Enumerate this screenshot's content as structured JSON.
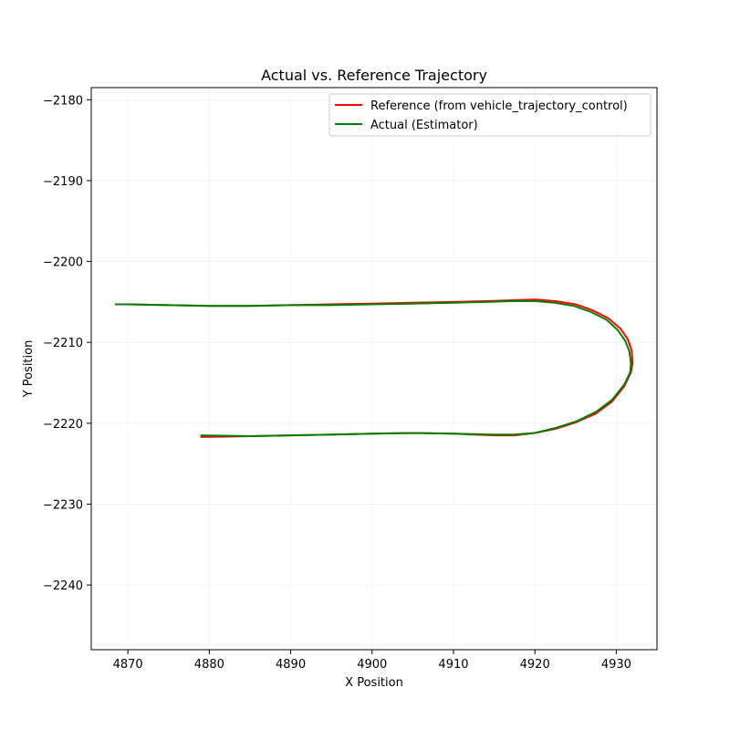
{
  "chart_data": {
    "type": "line",
    "title": "Actual vs. Reference Trajectory",
    "xlabel": "X Position",
    "ylabel": "Y Position",
    "xlim": [
      4865.5,
      4935.0
    ],
    "ylim": [
      -2248.0,
      -2178.5
    ],
    "xticks": [
      4870,
      4880,
      4890,
      4900,
      4910,
      4920,
      4930
    ],
    "yticks": [
      -2180,
      -2190,
      -2200,
      -2210,
      -2220,
      -2230,
      -2240
    ],
    "grid": true,
    "legend": "top-right",
    "series": [
      {
        "name": "Reference (from vehicle_trajectory_control)",
        "color": "#ff0000",
        "x": [
          4879.0,
          4885.0,
          4890.0,
          4895.0,
          4900.0,
          4905.0,
          4910.0,
          4915.0,
          4917.5,
          4920.0,
          4922.5,
          4925.0,
          4927.5,
          4929.5,
          4931.0,
          4931.8,
          4932.0,
          4931.9,
          4931.4,
          4930.5,
          4929.0,
          4927.0,
          4925.0,
          4922.5,
          4920.0,
          4917.0,
          4914.0,
          4910.0,
          4905.0,
          4900.0,
          4895.0,
          4890.0,
          4885.0,
          4880.0,
          4875.0,
          4870.0,
          4868.5
        ],
        "y": [
          -2221.7,
          -2221.6,
          -2221.5,
          -2221.4,
          -2221.3,
          -2221.2,
          -2221.3,
          -2221.5,
          -2221.5,
          -2221.2,
          -2220.7,
          -2219.9,
          -2218.8,
          -2217.3,
          -2215.4,
          -2213.7,
          -2212.6,
          -2211.0,
          -2209.6,
          -2208.3,
          -2207.0,
          -2206.0,
          -2205.3,
          -2204.9,
          -2204.7,
          -2204.8,
          -2204.9,
          -2205.0,
          -2205.1,
          -2205.2,
          -2205.3,
          -2205.4,
          -2205.5,
          -2205.5,
          -2205.4,
          -2205.3,
          -2205.3
        ]
      },
      {
        "name": "Actual (Estimator)",
        "color": "#008000",
        "x": [
          4879.0,
          4885.0,
          4890.0,
          4895.0,
          4900.0,
          4905.0,
          4910.0,
          4915.0,
          4917.5,
          4920.0,
          4922.5,
          4925.0,
          4927.5,
          4929.5,
          4931.0,
          4931.7,
          4931.8,
          4931.6,
          4931.1,
          4930.2,
          4928.8,
          4926.8,
          4924.8,
          4922.4,
          4920.0,
          4917.0,
          4914.0,
          4910.0,
          4905.0,
          4900.0,
          4895.0,
          4890.0,
          4885.0,
          4880.0,
          4875.0,
          4870.0,
          4868.5
        ],
        "y": [
          -2221.5,
          -2221.6,
          -2221.5,
          -2221.4,
          -2221.3,
          -2221.2,
          -2221.3,
          -2221.4,
          -2221.4,
          -2221.2,
          -2220.6,
          -2219.8,
          -2218.6,
          -2217.1,
          -2215.2,
          -2213.7,
          -2212.6,
          -2211.1,
          -2209.8,
          -2208.5,
          -2207.2,
          -2206.2,
          -2205.5,
          -2205.1,
          -2204.9,
          -2204.9,
          -2205.0,
          -2205.1,
          -2205.2,
          -2205.3,
          -2205.4,
          -2205.4,
          -2205.5,
          -2205.5,
          -2205.4,
          -2205.3,
          -2205.3
        ]
      }
    ]
  }
}
